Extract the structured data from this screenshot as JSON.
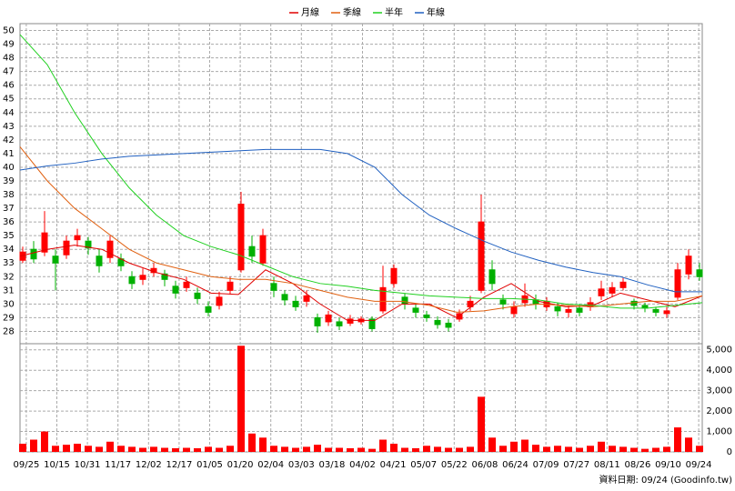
{
  "chart_data": {
    "type": "candlestick",
    "legend": "top",
    "xlim": [
      0,
      250
    ],
    "xticks": [
      {
        "value": 2.3,
        "label": "09/25"
      },
      {
        "value": 13.5,
        "label": "10/15"
      },
      {
        "value": 24.7,
        "label": "10/31"
      },
      {
        "value": 35.9,
        "label": "11/17"
      },
      {
        "value": 47.1,
        "label": "12/02"
      },
      {
        "value": 58.3,
        "label": "12/17"
      },
      {
        "value": 69.5,
        "label": "01/05"
      },
      {
        "value": 80.7,
        "label": "01/20"
      },
      {
        "value": 91.9,
        "label": "02/04"
      },
      {
        "value": 103.1,
        "label": "03/03"
      },
      {
        "value": 114.3,
        "label": "03/18"
      },
      {
        "value": 125.5,
        "label": "04/02"
      },
      {
        "value": 136.7,
        "label": "04/21"
      },
      {
        "value": 147.9,
        "label": "05/07"
      },
      {
        "value": 159.1,
        "label": "05/22"
      },
      {
        "value": 170.3,
        "label": "06/08"
      },
      {
        "value": 181.5,
        "label": "06/24"
      },
      {
        "value": 192.7,
        "label": "07/09"
      },
      {
        "value": 203.9,
        "label": "07/27"
      },
      {
        "value": 215.1,
        "label": "08/11"
      },
      {
        "value": 226.3,
        "label": "08/26"
      },
      {
        "value": 237.5,
        "label": "09/10"
      },
      {
        "value": 248.7,
        "label": "09/24"
      }
    ],
    "ylim": [
      27.1,
      50.5
    ],
    "yticks": [
      28,
      29,
      30,
      31,
      32,
      33,
      34,
      35,
      36,
      37,
      38,
      39,
      40,
      41,
      42,
      43,
      44,
      45,
      46,
      47,
      48,
      49,
      50
    ],
    "vlim": [
      0,
      5300
    ],
    "vticks": [
      0,
      {
        "value": 1000,
        "label": "1,000"
      },
      {
        "value": 2000,
        "label": "2,000"
      },
      {
        "value": 3000,
        "label": "3,000"
      },
      {
        "value": 4000,
        "label": "4,000"
      },
      {
        "value": 5000,
        "label": "5,000"
      }
    ],
    "grid": true,
    "candles": {
      "up_color": "#ff0000",
      "down_color": "#00b000",
      "volume_color": "#ff0000",
      "x": [
        1,
        5,
        9,
        13,
        17,
        21,
        25,
        29,
        33,
        37,
        41,
        45,
        49,
        53,
        57,
        61,
        65,
        69,
        73,
        77,
        81,
        85,
        89,
        93,
        97,
        101,
        105,
        109,
        113,
        117,
        121,
        125,
        129,
        133,
        137,
        141,
        145,
        149,
        153,
        157,
        161,
        165,
        169,
        173,
        177,
        181,
        185,
        189,
        193,
        197,
        201,
        205,
        209,
        213,
        217,
        221,
        225,
        229,
        233,
        237,
        241,
        245,
        249
      ],
      "open": [
        33.2,
        34,
        33.8,
        33.5,
        33.6,
        34.7,
        34.6,
        33.5,
        33.4,
        33.3,
        32,
        31.8,
        32.3,
        32.2,
        31.3,
        31.2,
        30.8,
        29.8,
        29.9,
        31,
        32.5,
        34.2,
        33,
        31.5,
        30.7,
        30.2,
        30.2,
        29,
        28.7,
        28.7,
        28.6,
        28.7,
        28.9,
        29.5,
        31.5,
        30.5,
        29.7,
        29.2,
        28.8,
        28.6,
        28.9,
        29.8,
        31,
        32.5,
        30.3,
        29.3,
        30.1,
        30.3,
        29.8,
        29.8,
        29.4,
        29.7,
        29.8,
        30.6,
        30.8,
        31.2,
        30.2,
        29.9,
        29.6,
        29.3,
        30.5,
        32.2,
        32.5
      ],
      "high": [
        34.2,
        34.6,
        36.8,
        34,
        35,
        35.5,
        34.9,
        34,
        35,
        33.7,
        32.4,
        32.6,
        33,
        32.5,
        31.7,
        32,
        31.2,
        30.2,
        30.9,
        32,
        38.2,
        35,
        35.5,
        32,
        31,
        30.6,
        31,
        29.3,
        29.5,
        29,
        29.2,
        29.1,
        29.1,
        32.8,
        32.9,
        30.8,
        30,
        29.5,
        29.1,
        28.9,
        29.6,
        30.6,
        38,
        33.2,
        30.7,
        30.2,
        31.5,
        30.7,
        30.5,
        30.1,
        29.9,
        30,
        30.5,
        31.7,
        31.6,
        31.9,
        30.4,
        30.1,
        29.8,
        29.8,
        33,
        34,
        33
      ],
      "low": [
        33,
        33,
        33.5,
        31,
        33.3,
        34.2,
        33.6,
        32.3,
        33,
        32.4,
        31.1,
        31.4,
        32,
        31.3,
        30.4,
        30.9,
        30,
        29.1,
        29.6,
        30.7,
        32.3,
        33,
        32.8,
        30.5,
        29.9,
        29.5,
        29.8,
        27.9,
        28.4,
        28.1,
        28.4,
        28.5,
        28,
        29.3,
        31.2,
        29.6,
        29,
        28.7,
        28.2,
        28,
        28.7,
        29.5,
        30.8,
        31,
        29.6,
        29,
        29.8,
        29.6,
        29.5,
        29.1,
        29,
        29.1,
        29.5,
        30.3,
        30.5,
        31,
        29.6,
        29.4,
        29.1,
        29,
        30.3,
        31.8,
        31.7
      ],
      "close": [
        33.8,
        33.3,
        35.2,
        33,
        34.6,
        35,
        34.1,
        32.8,
        34.6,
        32.8,
        31.5,
        32.1,
        32.6,
        31.8,
        30.8,
        31.6,
        30.4,
        29.4,
        30.5,
        31.6,
        37.3,
        33.5,
        35,
        31,
        30.3,
        29.8,
        30.6,
        28.4,
        29.2,
        28.4,
        28.9,
        28.9,
        28.2,
        31.2,
        32.6,
        30,
        29.4,
        29,
        28.5,
        28.3,
        29.3,
        30.2,
        36,
        31.5,
        30,
        29.8,
        30.6,
        30,
        30.2,
        29.5,
        29.6,
        29.4,
        30.1,
        31.1,
        31.2,
        31.6,
        29.9,
        29.7,
        29.4,
        29.5,
        32.5,
        33.5,
        32
      ],
      "volume": [
        400,
        600,
        1000,
        300,
        350,
        400,
        300,
        250,
        500,
        300,
        250,
        200,
        250,
        200,
        180,
        200,
        180,
        250,
        200,
        300,
        5200,
        900,
        700,
        300,
        250,
        200,
        250,
        350,
        200,
        200,
        180,
        200,
        150,
        600,
        400,
        200,
        180,
        300,
        250,
        200,
        200,
        250,
        2700,
        700,
        300,
        500,
        600,
        350,
        250,
        300,
        250,
        200,
        300,
        500,
        300,
        250,
        200,
        150,
        200,
        250,
        1200,
        700,
        300
      ]
    },
    "ma_x": [
      0,
      10,
      20,
      30,
      40,
      50,
      60,
      70,
      80,
      90,
      100,
      110,
      120,
      130,
      140,
      150,
      160,
      170,
      180,
      190,
      200,
      210,
      220,
      230,
      240,
      250
    ],
    "series": [
      {
        "name": "月線",
        "color": "#e00000",
        "values": [
          33.5,
          34,
          34.3,
          34,
          33,
          32.3,
          31.8,
          30.8,
          30.7,
          32.5,
          31.5,
          30,
          28.8,
          28.8,
          30,
          30,
          29,
          30.5,
          31.5,
          30.2,
          29.8,
          29.9,
          30.8,
          30.3,
          29.8,
          30.6
        ]
      },
      {
        "name": "季線",
        "color": "#e06010",
        "values": [
          41.5,
          39,
          37,
          35.5,
          34,
          33,
          32.5,
          32,
          31.8,
          31.8,
          31.5,
          31,
          30.5,
          30.2,
          30.2,
          29.9,
          29.4,
          29.5,
          29.8,
          30,
          29.9,
          29.8,
          30,
          30.2,
          30.2,
          30.6
        ]
      },
      {
        "name": "半年",
        "color": "#20d020",
        "values": [
          49.7,
          47.5,
          44,
          41,
          38.5,
          36.5,
          35,
          34.2,
          33.6,
          32.8,
          32,
          31.5,
          31.3,
          31,
          30.8,
          30.6,
          30.5,
          30.4,
          30.4,
          30.3,
          30,
          29.9,
          29.7,
          29.7,
          29.9,
          30.1
        ]
      },
      {
        "name": "年線",
        "color": "#2060c0",
        "values": [
          39.8,
          40.1,
          40.3,
          40.6,
          40.8,
          40.9,
          41,
          41.1,
          41.2,
          41.3,
          41.3,
          41.3,
          41,
          40,
          38,
          36.5,
          35.5,
          34.6,
          33.8,
          33.2,
          32.7,
          32.3,
          32,
          31.4,
          30.9,
          30.9
        ]
      }
    ],
    "date_note": "資料日期: 09/24 (Goodinfo.tw)"
  }
}
